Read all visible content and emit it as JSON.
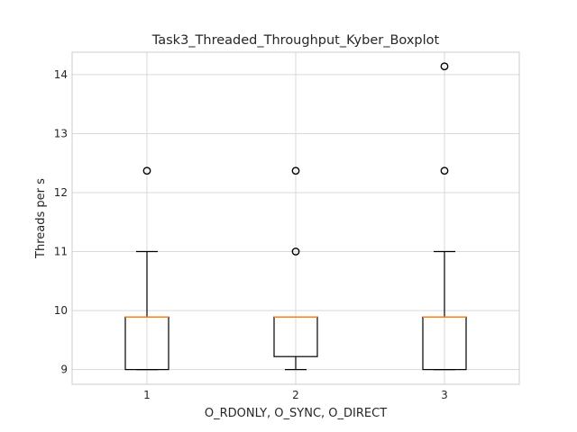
{
  "chart_data": {
    "type": "boxplot",
    "title": "Task3_Threaded_Throughput_Kyber_Boxplot",
    "xlabel": "O_RDONLY, O_SYNC, O_DIRECT",
    "ylabel": "Threads per s",
    "categories": [
      "1",
      "2",
      "3"
    ],
    "ylim": [
      8.75,
      14.38
    ],
    "yticks": [
      "9",
      "10",
      "11",
      "12",
      "13",
      "14"
    ],
    "grid": true,
    "boxes": [
      {
        "category": "1",
        "whisker_low": 9.0,
        "q1": 9.0,
        "median": 9.89,
        "q3": 9.89,
        "whisker_high": 11.0,
        "outliers": [
          12.37
        ]
      },
      {
        "category": "2",
        "whisker_low": 9.0,
        "q1": 9.22,
        "median": 9.89,
        "q3": 9.89,
        "whisker_high": 9.89,
        "outliers": [
          11.0,
          12.37
        ]
      },
      {
        "category": "3",
        "whisker_low": 9.0,
        "q1": 9.0,
        "median": 9.89,
        "q3": 9.89,
        "whisker_high": 11.0,
        "outliers": [
          12.37,
          14.14
        ]
      }
    ],
    "colors": {
      "box": "#000000",
      "median": "#ff7f0e",
      "grid": "#d9d9d9",
      "spine": "#cccccc"
    }
  }
}
